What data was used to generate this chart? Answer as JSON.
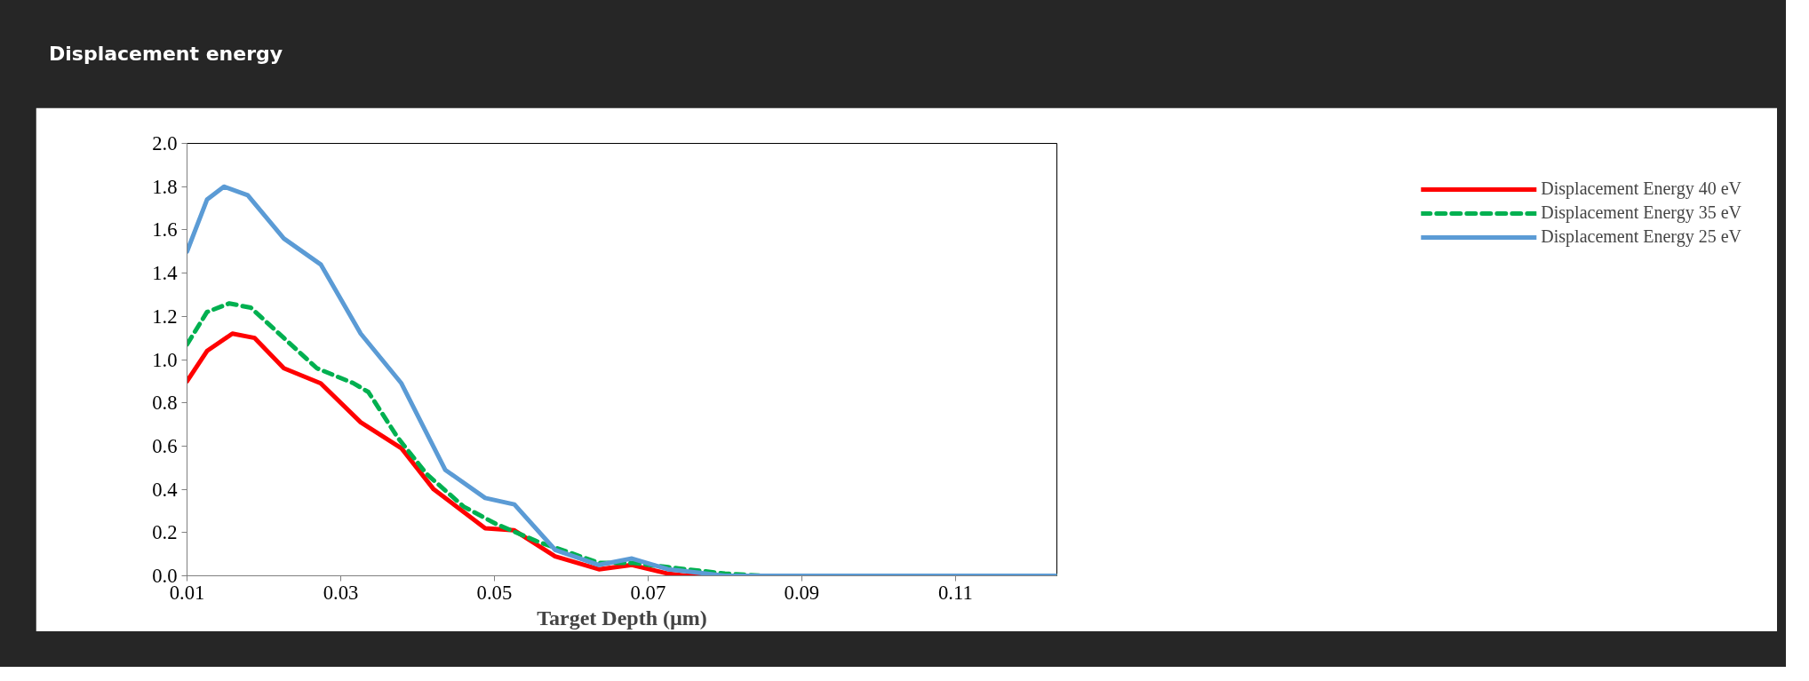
{
  "chart_data": {
    "type": "line",
    "title": "Displacement energy",
    "xlabel": "Target Depth (µm)",
    "xlim": [
      0.01,
      0.1232
    ],
    "xticks": [
      0.01,
      0.03,
      0.05,
      0.07,
      0.09,
      0.11
    ],
    "ylim": [
      0,
      2
    ],
    "yticks": [
      {
        "value": 0,
        "label": "0.0"
      },
      0.2,
      0.4,
      0.6,
      0.8,
      {
        "value": 1,
        "label": "1.0"
      },
      1.2,
      1.4,
      1.6,
      1.8,
      {
        "value": 2,
        "label": "2.0"
      }
    ],
    "grid": false,
    "legend": "right",
    "series": [
      {
        "name": "Displacement Energy 40 eV",
        "color": "#ff0000",
        "line_style": "solid",
        "x": [
          0.01,
          0.0126,
          0.0159,
          0.0188,
          0.0226,
          0.0274,
          0.0326,
          0.0379,
          0.0421,
          0.0488,
          0.0526,
          0.0579,
          0.0636,
          0.0679,
          0.0726,
          0.075,
          0.08,
          0.1232
        ],
        "values": [
          0.9,
          1.04,
          1.12,
          1.1,
          0.96,
          0.89,
          0.71,
          0.59,
          0.4,
          0.22,
          0.21,
          0.09,
          0.03,
          0.05,
          0.01,
          0.0,
          0.0,
          0.0
        ]
      },
      {
        "name": "Displacement Energy 35 eV",
        "color": "#00b050",
        "line_style": "dashed",
        "x": [
          0.01,
          0.0126,
          0.0155,
          0.0183,
          0.0226,
          0.0269,
          0.0317,
          0.0336,
          0.0374,
          0.0412,
          0.046,
          0.0502,
          0.0555,
          0.0636,
          0.0679,
          0.0726,
          0.075,
          0.08,
          0.085,
          0.1232
        ],
        "values": [
          1.07,
          1.22,
          1.26,
          1.24,
          1.1,
          0.96,
          0.89,
          0.85,
          0.64,
          0.47,
          0.32,
          0.24,
          0.16,
          0.06,
          0.06,
          0.04,
          0.03,
          0.01,
          0.0,
          0.0
        ]
      },
      {
        "name": "Displacement Energy 25 eV",
        "color": "#5b9bd5",
        "line_style": "solid",
        "x": [
          0.01,
          0.0126,
          0.0148,
          0.0179,
          0.0226,
          0.0274,
          0.0326,
          0.0379,
          0.0436,
          0.0488,
          0.0526,
          0.0579,
          0.0636,
          0.0679,
          0.0726,
          0.08,
          0.1232
        ],
        "values": [
          1.5,
          1.74,
          1.8,
          1.76,
          1.56,
          1.44,
          1.12,
          0.89,
          0.49,
          0.36,
          0.33,
          0.12,
          0.05,
          0.08,
          0.03,
          0.0,
          0.0
        ]
      }
    ]
  }
}
